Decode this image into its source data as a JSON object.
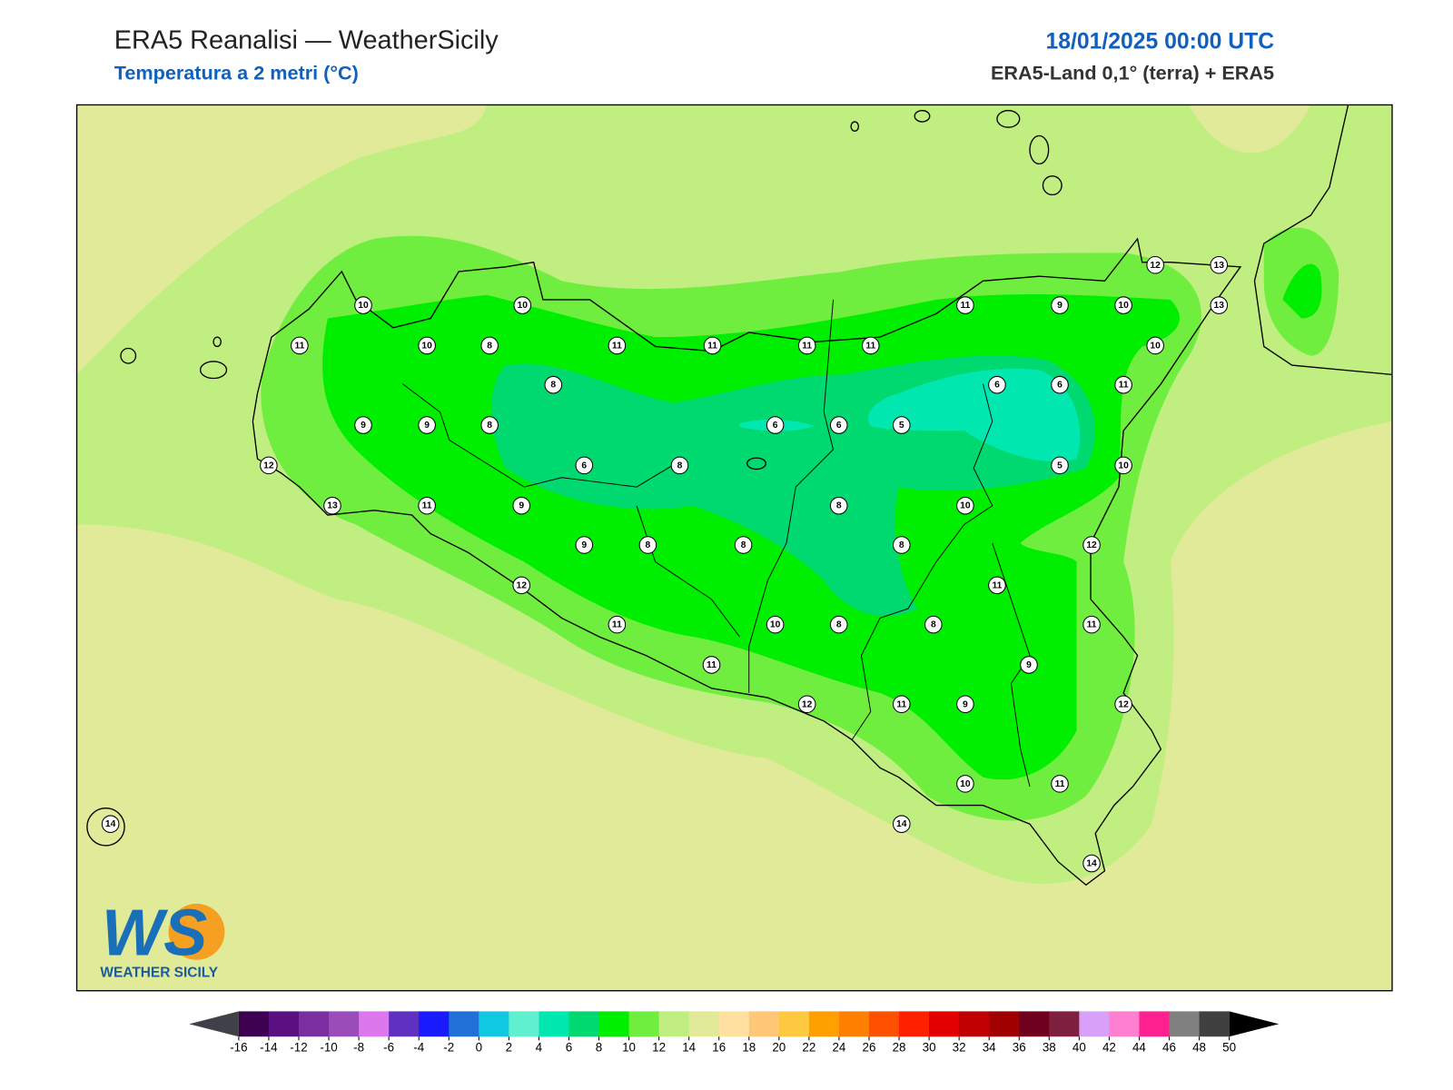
{
  "header": {
    "title": "ERA5 Reanalisi — WeatherSicily",
    "subtitle": "Temperatura a 2 metri (°C)",
    "datetime": "18/01/2025 00:00 UTC",
    "source": "ERA5-Land 0,1° (terra) + ERA5"
  },
  "stations": [
    10,
    10,
    11,
    10,
    8,
    11,
    11,
    11,
    11,
    11,
    9,
    10,
    12,
    13,
    13,
    10,
    8,
    6,
    6,
    11,
    9,
    9,
    8,
    6,
    6,
    5,
    6,
    8,
    5,
    10,
    12,
    13,
    11,
    9,
    8,
    10,
    9,
    8,
    8,
    8,
    12,
    12,
    11,
    11,
    10,
    8,
    8,
    11,
    11,
    9,
    12,
    11,
    9,
    12,
    10,
    11,
    14,
    14,
    14
  ],
  "colorbar": {
    "ticks": [
      -16,
      -14,
      -12,
      -10,
      -8,
      -6,
      -4,
      -2,
      0,
      2,
      4,
      6,
      8,
      10,
      12,
      14,
      16,
      18,
      20,
      22,
      24,
      26,
      28,
      30,
      32,
      34,
      36,
      38,
      40,
      42,
      44,
      46,
      48,
      50
    ],
    "colors": [
      "#3d0050",
      "#5a1080",
      "#7a2ea0",
      "#9a4cb8",
      "#dd77ee",
      "#6030c0",
      "#1a1aff",
      "#2070d8",
      "#10c8e0",
      "#60f0d0",
      "#00e8b0",
      "#00d870",
      "#00ee00",
      "#70ee40",
      "#c0ee80",
      "#e0ea98",
      "#ffe0a0",
      "#ffc878",
      "#ffc840",
      "#ffa000",
      "#ff8000",
      "#ff5000",
      "#ff2000",
      "#e00000",
      "#c00000",
      "#a00000",
      "#700020",
      "#802040",
      "#d8a0f8",
      "#ff80d0",
      "#ff2090",
      "#808080",
      "#404040"
    ],
    "under_color": "#404048",
    "over_color": "#000000"
  },
  "logo": {
    "mark": "WS",
    "caption": "WEATHER SICILY"
  }
}
